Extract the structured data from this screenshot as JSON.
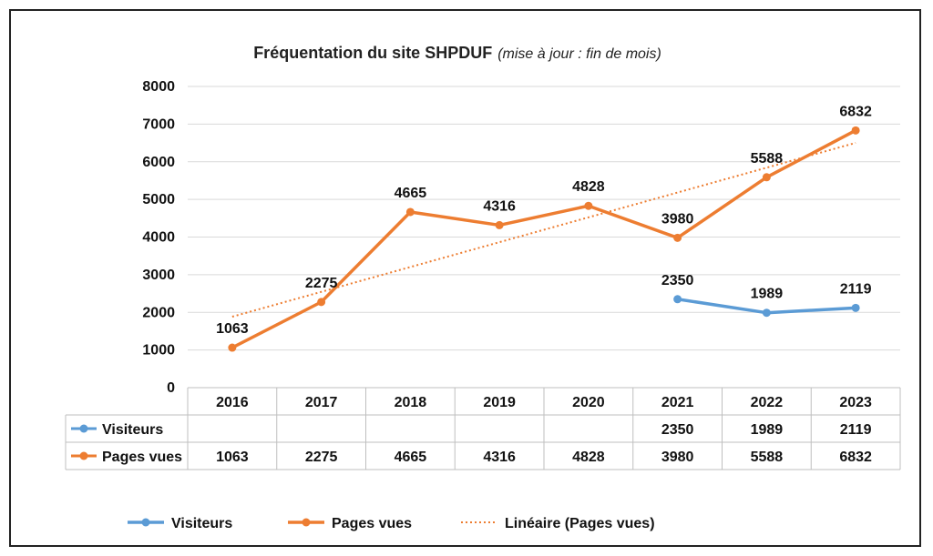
{
  "colors": {
    "visiteurs": "#5b9bd5",
    "pages_vues": "#ed7d31",
    "grid": "#d9d9d9",
    "table_border": "#bfbfbf"
  },
  "chart_data": {
    "type": "line",
    "title": "Fréquentation du site SHPDUF",
    "subtitle": "(mise à jour : fin de mois)",
    "categories": [
      "2016",
      "2017",
      "2018",
      "2019",
      "2020",
      "2021",
      "2022",
      "2023"
    ],
    "ylim": [
      0,
      8000
    ],
    "yticks": [
      "0",
      "1000",
      "2000",
      "3000",
      "4000",
      "5000",
      "6000",
      "7000",
      "8000"
    ],
    "grid": true,
    "data_table": true,
    "legend_position": "bottom",
    "series": [
      {
        "name": "Visiteurs",
        "color": "#5b9bd5",
        "values": [
          null,
          null,
          null,
          null,
          null,
          2350,
          1989,
          2119
        ],
        "labels": [
          "",
          "",
          "",
          "",
          "",
          "2350",
          "1989",
          "2119"
        ]
      },
      {
        "name": "Pages vues",
        "color": "#ed7d31",
        "values": [
          1063,
          2275,
          4665,
          4316,
          4828,
          3980,
          5588,
          6832
        ],
        "labels": [
          "1063",
          "2275",
          "4665",
          "4316",
          "4828",
          "3980",
          "5588",
          "6832"
        ]
      }
    ],
    "trendline": {
      "name": "Linéaire (Pages vues)",
      "color": "#ed7d31",
      "style": "dotted",
      "of_series": "Pages vues"
    }
  }
}
